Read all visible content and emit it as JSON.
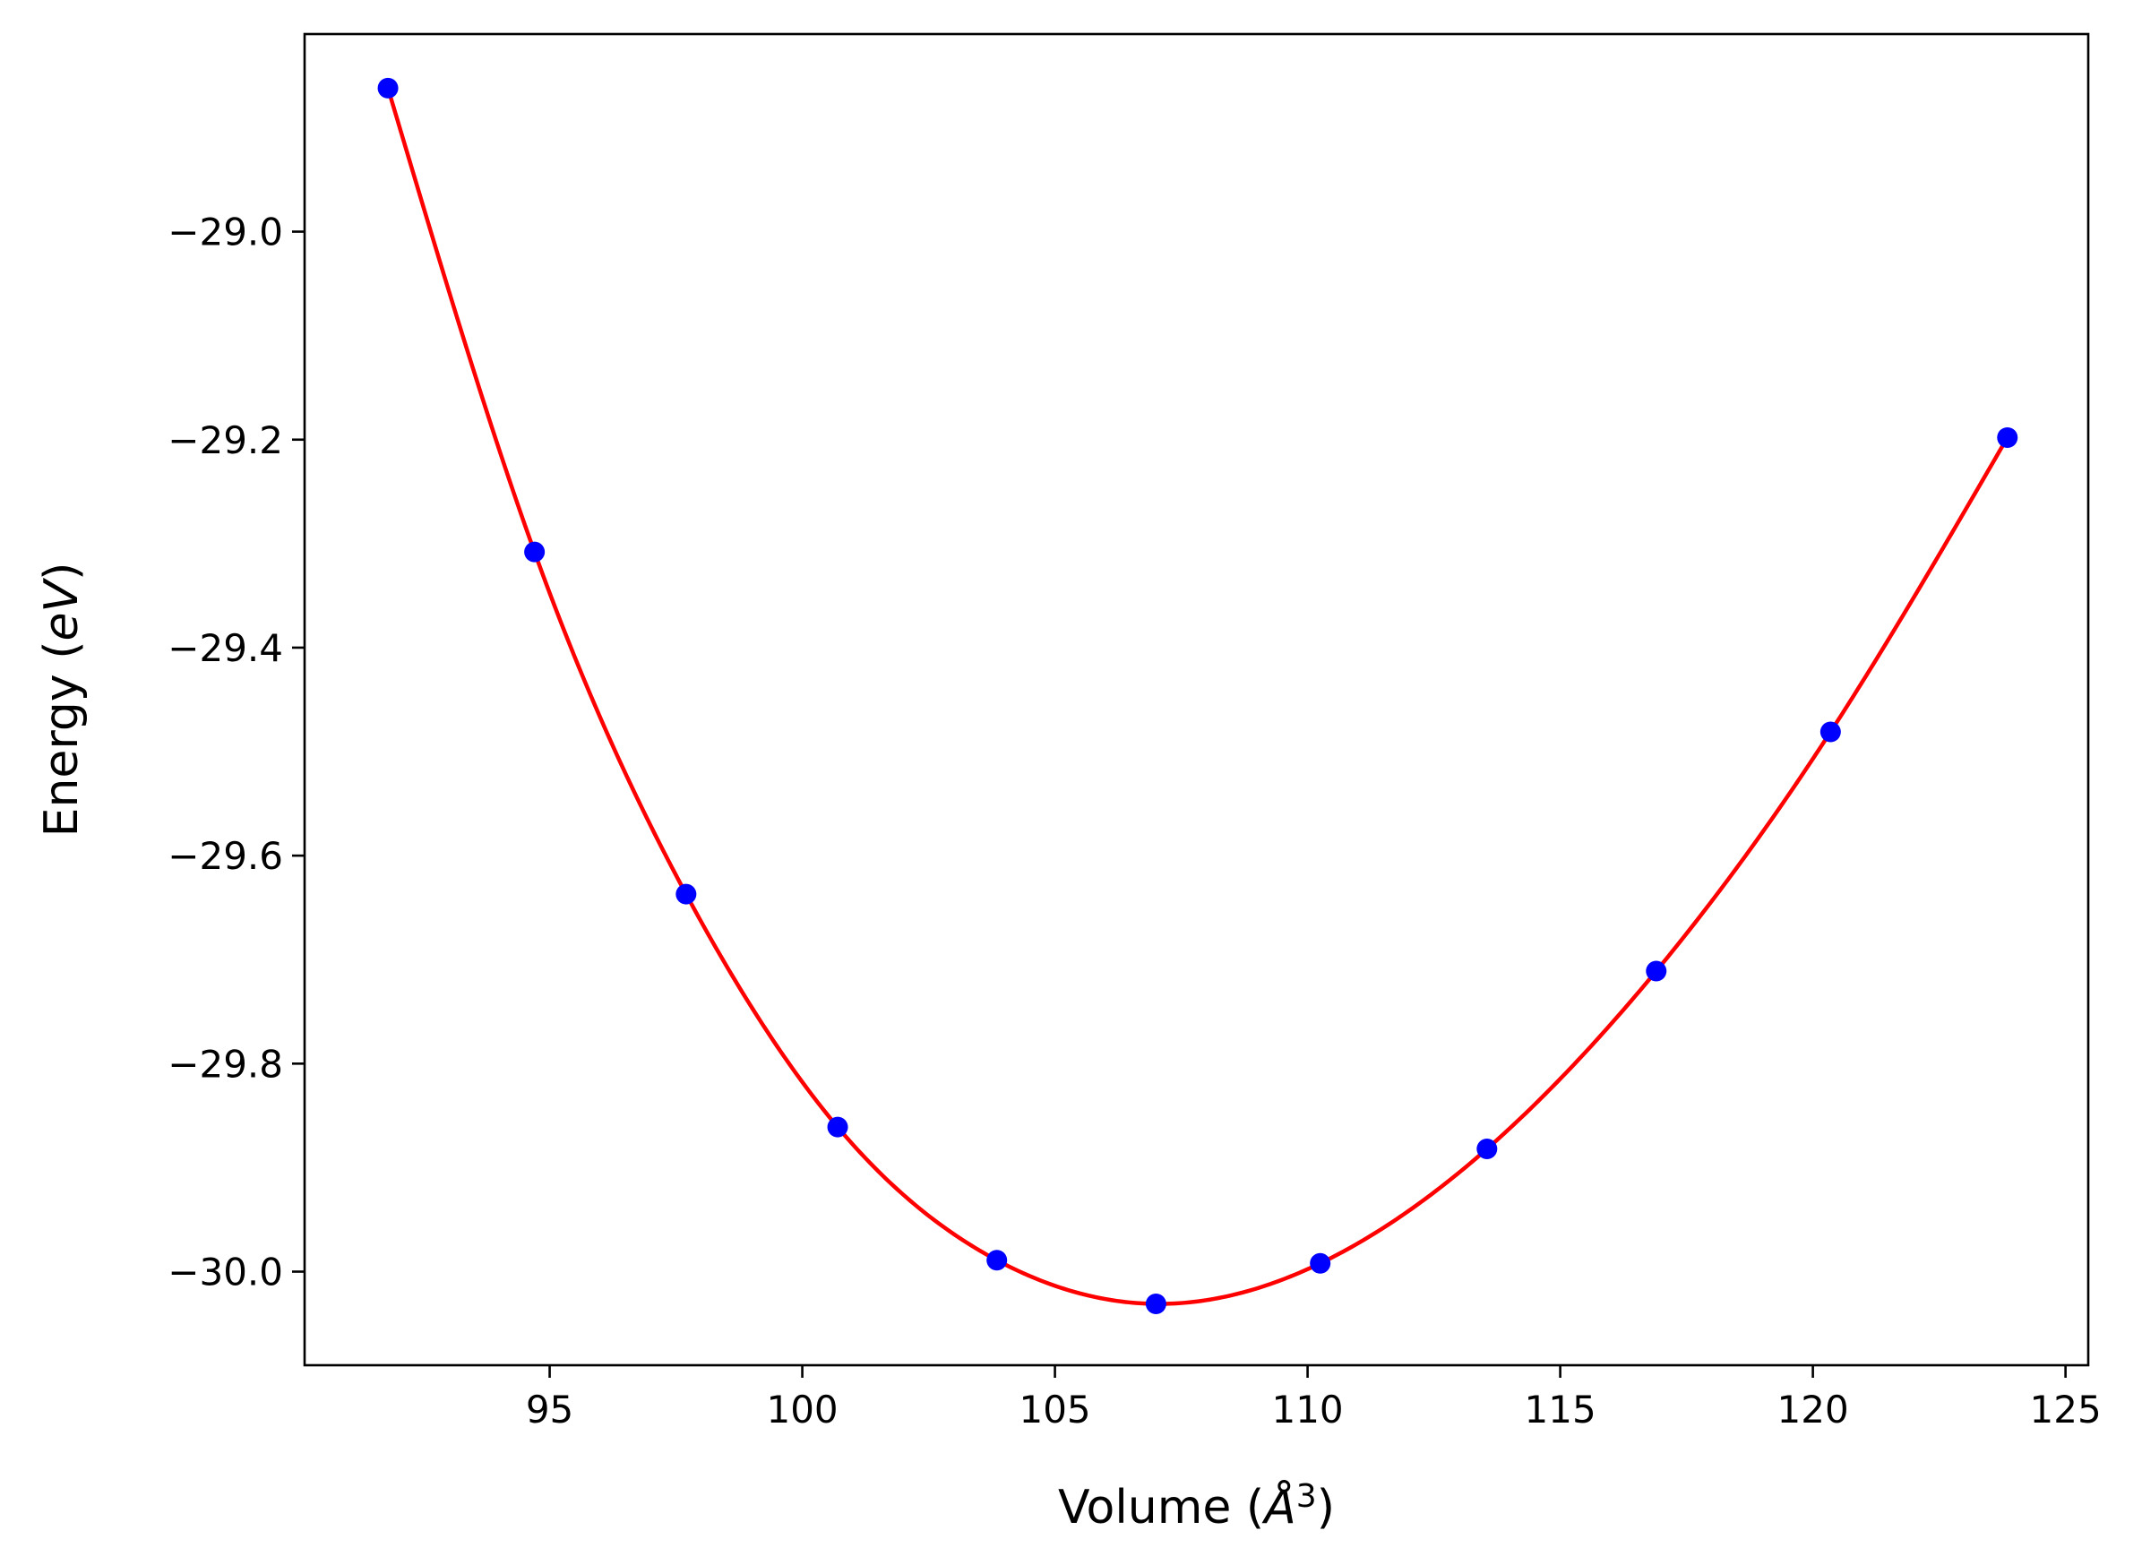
{
  "chart_data": {
    "type": "scatter",
    "xlabel": "Volume (Å³)",
    "ylabel": "Energy (eV)",
    "xlabel_parts": {
      "text": "Volume (",
      "unit": "Å",
      "power": "3",
      "close": ")"
    },
    "ylabel_parts": {
      "text": "Energy (",
      "unit": "eV",
      "close": ")"
    },
    "xlim": [
      90.15,
      125.45
    ],
    "ylim": [
      -30.09,
      -28.81
    ],
    "x_ticks": [
      95,
      100,
      105,
      110,
      115,
      120,
      125
    ],
    "x_tick_labels": [
      "95",
      "100",
      "105",
      "110",
      "115",
      "120",
      "125"
    ],
    "y_ticks": [
      -30.0,
      -29.8,
      -29.6,
      -29.4,
      -29.2,
      -29.0
    ],
    "y_tick_labels": [
      "−30.0",
      "−29.8",
      "−29.6",
      "−29.4",
      "−29.2",
      "−29.0"
    ],
    "grid": false,
    "series": [
      {
        "kind": "points",
        "color": "#0000ff",
        "x": [
          91.8,
          94.7,
          97.7,
          100.7,
          103.85,
          107.0,
          110.25,
          113.55,
          116.9,
          120.35,
          123.85
        ],
        "y": [
          -28.862,
          -29.308,
          -29.637,
          -29.861,
          -29.989,
          -30.031,
          -29.992,
          -29.882,
          -29.711,
          -29.481,
          -29.198
        ]
      },
      {
        "kind": "fit-curve",
        "color": "#ff0000",
        "x": [
          91.8,
          94.7,
          97.7,
          100.7,
          103.85,
          107.0,
          110.25,
          113.55,
          116.9,
          120.35,
          123.85
        ],
        "y": [
          -28.862,
          -29.308,
          -29.637,
          -29.861,
          -29.989,
          -30.031,
          -29.992,
          -29.882,
          -29.711,
          -29.481,
          -29.198
        ]
      }
    ]
  }
}
